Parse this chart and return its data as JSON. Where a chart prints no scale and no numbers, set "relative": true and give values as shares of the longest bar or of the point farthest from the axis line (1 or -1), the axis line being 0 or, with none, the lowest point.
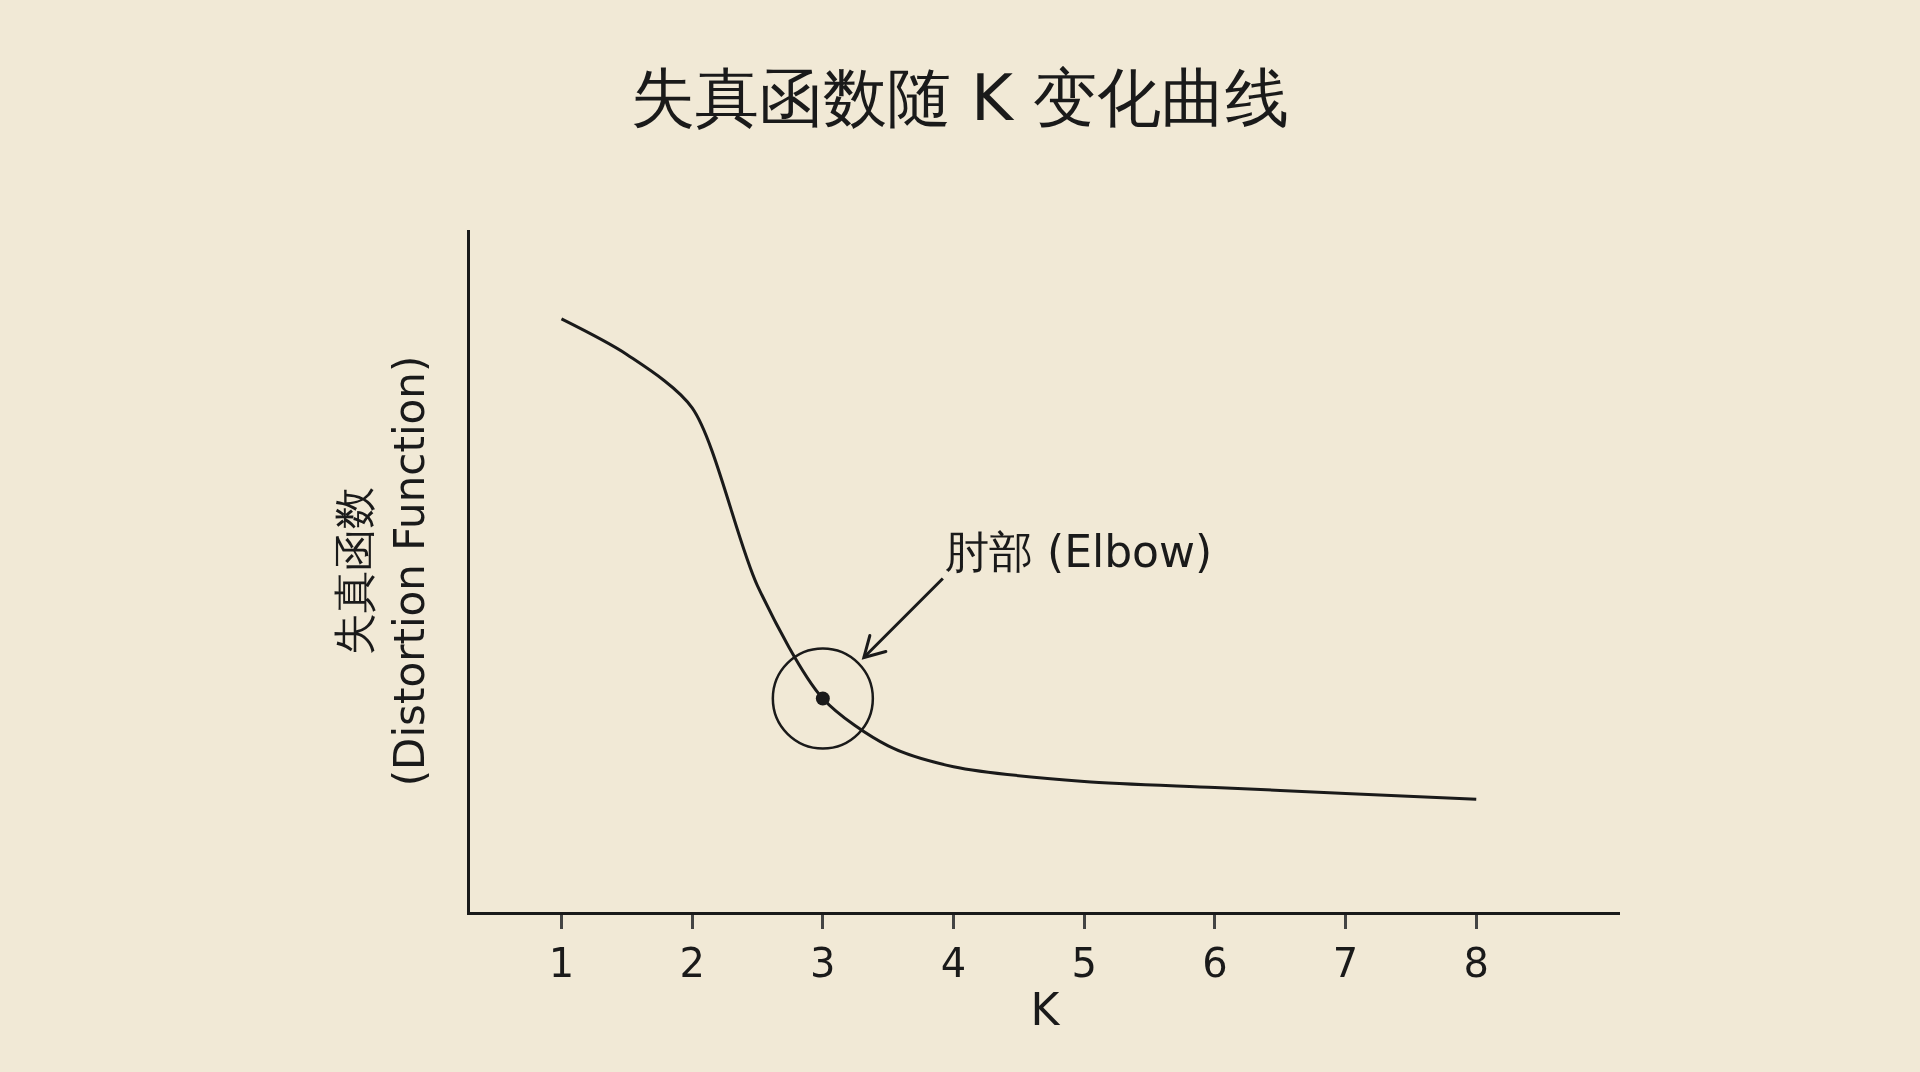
{
  "chart_data": {
    "type": "line",
    "title": "失真函数随 K 变化曲线",
    "xlabel": "K",
    "ylabel": "失真函数\n(Distortion Function)",
    "relative": true,
    "xlim": [
      0.3,
      9.1
    ],
    "xticks": [
      1,
      2,
      3,
      4,
      5,
      6,
      7,
      8
    ],
    "grid": false,
    "line_style": "solid",
    "series": [
      {
        "color": "#1a1a1a",
        "x": [
          1,
          1.5,
          2,
          2.5,
          3,
          3.5,
          4,
          5,
          6,
          7,
          8
        ],
        "values": [
          1,
          0.94,
          0.85,
          0.55,
          0.36,
          0.28,
          0.245,
          0.22,
          0.21,
          0.2,
          0.19
        ]
      },
      {
        "type": "scatter",
        "color": "#1a1a1a",
        "x": [
          3
        ],
        "values": [
          0.36
        ]
      }
    ],
    "annotations": [
      {
        "text": "肘部 (Elbow)",
        "x": 3,
        "y": 0.36
      }
    ]
  }
}
